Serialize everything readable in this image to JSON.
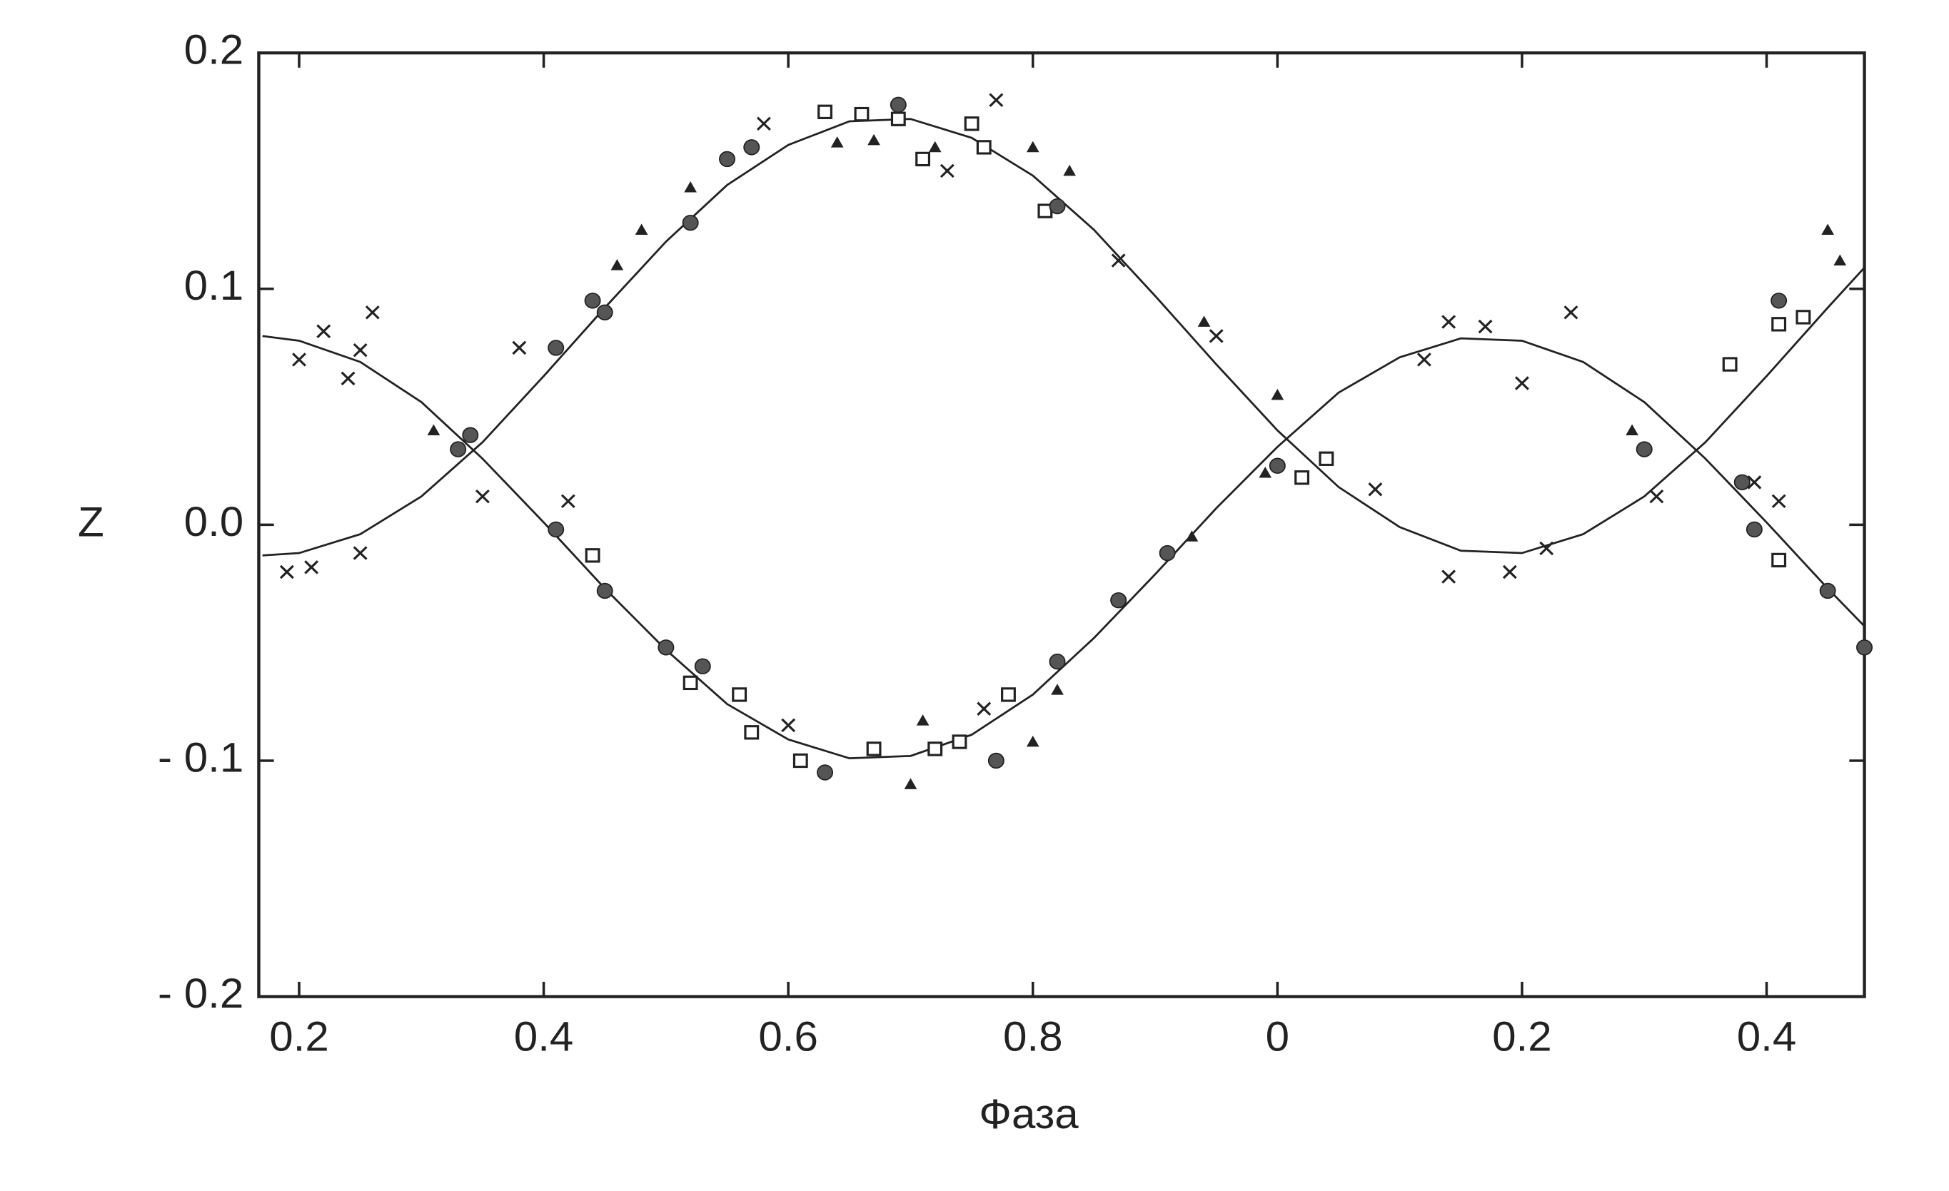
{
  "chart_data": {
    "type": "scatter",
    "xlabel": "Фаза",
    "ylabel": "Z",
    "xlim": [
      0.167,
      1.48
    ],
    "ylim": [
      -0.2,
      0.2
    ],
    "xticks": [
      0.2,
      0.4,
      0.6,
      0.8,
      {
        "value": 1.0,
        "label": "0"
      },
      {
        "value": 1.2,
        "label": "0.2"
      },
      {
        "value": 1.4,
        "label": "0.4"
      }
    ],
    "yticks": [
      {
        "value": -0.2,
        "label": "- 0.2"
      },
      {
        "value": -0.1,
        "label": "- 0.1"
      },
      {
        "value": 0,
        "label": "0.0"
      },
      0.1,
      0.2
    ],
    "series": [
      {
        "type": "line",
        "color": "#222222",
        "x": [
          0.17,
          0.2,
          0.25,
          0.3,
          0.35,
          0.4,
          0.45,
          0.5,
          0.55,
          0.6,
          0.65,
          0.7,
          0.75,
          0.8,
          0.85,
          0.9,
          0.95,
          1.0,
          1.05,
          1.1,
          1.15,
          1.2,
          1.25,
          1.3,
          1.35,
          1.4,
          1.45,
          1.48
        ],
        "values": [
          -0.013,
          -0.012,
          -0.004,
          0.012,
          0.035,
          0.063,
          0.092,
          0.12,
          0.144,
          0.161,
          0.171,
          0.172,
          0.164,
          0.148,
          0.125,
          0.097,
          0.068,
          0.04,
          0.016,
          -0.001,
          -0.011,
          -0.012,
          -0.004,
          0.012,
          0.035,
          0.063,
          0.092,
          0.109
        ]
      },
      {
        "type": "line",
        "color": "#222222",
        "x": [
          0.17,
          0.2,
          0.25,
          0.3,
          0.35,
          0.4,
          0.45,
          0.5,
          0.55,
          0.6,
          0.65,
          0.7,
          0.75,
          0.8,
          0.85,
          0.9,
          0.95,
          1.0,
          1.05,
          1.1,
          1.15,
          1.2,
          1.25,
          1.3,
          1.35,
          1.4,
          1.45,
          1.48
        ],
        "values": [
          0.08,
          0.078,
          0.069,
          0.052,
          0.028,
          0.001,
          -0.027,
          -0.053,
          -0.076,
          -0.091,
          -0.099,
          -0.098,
          -0.089,
          -0.072,
          -0.048,
          -0.021,
          0.007,
          0.033,
          0.056,
          0.071,
          0.079,
          0.078,
          0.069,
          0.052,
          0.028,
          0.001,
          -0.027,
          -0.043
        ]
      },
      {
        "type": "scatter",
        "marker": "x",
        "color": "#222222",
        "x": [
          0.2,
          0.22,
          0.24,
          0.25,
          0.26,
          0.19,
          0.21,
          0.25,
          0.35,
          0.38,
          0.42,
          0.58,
          0.77,
          0.73,
          0.87,
          0.95,
          1.08,
          1.12,
          1.14,
          1.17,
          1.24,
          1.2,
          1.14,
          1.19,
          1.22,
          1.31,
          1.39,
          1.41,
          0.76,
          0.6
        ],
        "values": [
          0.07,
          0.082,
          0.062,
          0.074,
          0.09,
          -0.02,
          -0.018,
          -0.012,
          0.012,
          0.075,
          0.01,
          0.17,
          0.18,
          0.15,
          0.112,
          0.08,
          0.015,
          0.07,
          0.086,
          0.084,
          0.09,
          0.06,
          -0.022,
          -0.02,
          -0.01,
          0.012,
          0.018,
          0.01,
          -0.078,
          -0.085
        ]
      },
      {
        "type": "scatter",
        "marker": "triangle",
        "color": "#222222",
        "x": [
          0.48,
          0.46,
          0.52,
          0.64,
          0.67,
          0.72,
          0.8,
          0.83,
          0.7,
          0.71,
          0.8,
          0.82,
          0.94,
          0.93,
          1.0,
          1.29,
          1.45,
          1.46,
          0.31,
          0.99
        ],
        "values": [
          0.125,
          0.11,
          0.143,
          0.162,
          0.163,
          0.16,
          0.16,
          0.15,
          -0.11,
          -0.083,
          -0.092,
          -0.07,
          0.086,
          -0.005,
          0.055,
          0.04,
          0.125,
          0.112,
          0.04,
          0.022
        ]
      },
      {
        "type": "scatter",
        "marker": "square",
        "color": "#222222",
        "x": [
          0.63,
          0.66,
          0.69,
          0.75,
          0.71,
          0.76,
          0.81,
          0.44,
          0.52,
          0.56,
          0.57,
          0.61,
          0.67,
          0.72,
          0.74,
          0.78,
          1.02,
          1.04,
          1.37,
          1.41,
          1.43,
          1.41
        ],
        "values": [
          0.175,
          0.174,
          0.172,
          0.17,
          0.155,
          0.16,
          0.133,
          -0.013,
          -0.067,
          -0.072,
          -0.088,
          -0.1,
          -0.095,
          -0.095,
          -0.092,
          -0.072,
          0.02,
          0.028,
          0.068,
          0.085,
          0.088,
          -0.015
        ]
      },
      {
        "type": "scatter",
        "marker": "circle",
        "color": "#555555",
        "x": [
          0.33,
          0.34,
          0.41,
          0.44,
          0.45,
          0.55,
          0.52,
          0.57,
          0.69,
          0.82,
          0.41,
          0.45,
          0.5,
          0.53,
          0.63,
          0.77,
          0.82,
          0.87,
          0.91,
          1.0,
          1.3,
          1.38,
          1.39,
          1.45,
          1.48,
          1.41
        ],
        "values": [
          0.032,
          0.038,
          0.075,
          0.095,
          0.09,
          0.155,
          0.128,
          0.16,
          0.178,
          0.135,
          -0.002,
          -0.028,
          -0.052,
          -0.06,
          -0.105,
          -0.1,
          -0.058,
          -0.032,
          -0.012,
          0.025,
          0.032,
          0.018,
          -0.002,
          -0.028,
          -0.052,
          0.095
        ]
      }
    ]
  }
}
